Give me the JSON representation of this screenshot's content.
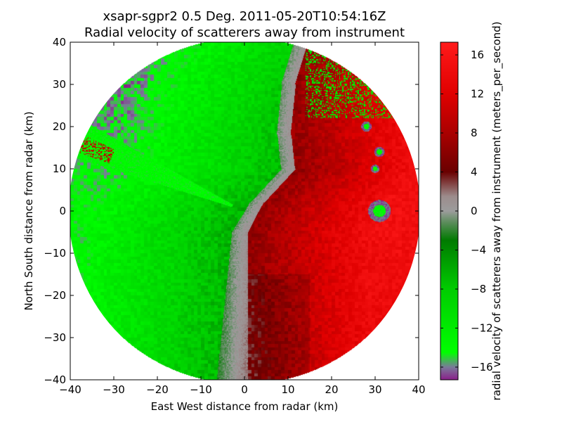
{
  "chart_data": {
    "type": "heatmap",
    "title_lines": [
      "xsapr-sgpr2 0.5 Deg. 2011-05-20T10:54:16Z",
      "Radial velocity of scatterers away from instrument"
    ],
    "xlabel": "East West distance from radar (km)",
    "ylabel": "North South distance from radar (km)",
    "xlim": [
      -40,
      40
    ],
    "ylim": [
      -40,
      40
    ],
    "xticks": [
      -40,
      -30,
      -20,
      -10,
      0,
      10,
      20,
      30,
      40
    ],
    "yticks": [
      -40,
      -30,
      -20,
      -10,
      0,
      10,
      20,
      30,
      40
    ],
    "xtick_labels": [
      "−40",
      "−30",
      "−20",
      "−10",
      "0",
      "10",
      "20",
      "30",
      "40"
    ],
    "ytick_labels": [
      "−40",
      "−30",
      "−20",
      "−10",
      "0",
      "10",
      "20",
      "30",
      "40"
    ],
    "data_extent": {
      "shape": "disk",
      "center": [
        0,
        0
      ],
      "radius_km": 41
    },
    "field": {
      "description_free": true,
      "regions": [
        {
          "velocity": -11,
          "note": "west"
        },
        {
          "velocity": 12,
          "note": "east"
        },
        {
          "velocity": 0,
          "note": "zero-velocity band"
        }
      ]
    },
    "colorbar": {
      "label": "radial velocity of scatterers away from instrument (meters_per_second)",
      "range": [
        -17.3,
        17.3
      ],
      "ticks": [
        -16,
        -12,
        -8,
        -4,
        0,
        4,
        8,
        12,
        16
      ],
      "tick_labels": [
        "−16",
        "−12",
        "−8",
        "−4",
        "0",
        "4",
        "8",
        "12",
        "16"
      ],
      "color_stops": [
        {
          "value": -17.3,
          "color": "#8a1f8a"
        },
        {
          "value": -16.0,
          "color": "#7a7a9a"
        },
        {
          "value": -14.5,
          "color": "#00ff00"
        },
        {
          "value": -8.0,
          "color": "#00cc00"
        },
        {
          "value": -3.0,
          "color": "#007a00"
        },
        {
          "value": -1.2,
          "color": "#5a8c5a"
        },
        {
          "value": 0.0,
          "color": "#9c9c9c"
        },
        {
          "value": 1.5,
          "color": "#9c8c8c"
        },
        {
          "value": 4.0,
          "color": "#6a0000"
        },
        {
          "value": 8.0,
          "color": "#aa0000"
        },
        {
          "value": 12.0,
          "color": "#e00000"
        },
        {
          "value": 17.3,
          "color": "#ff1a1a"
        }
      ]
    }
  }
}
